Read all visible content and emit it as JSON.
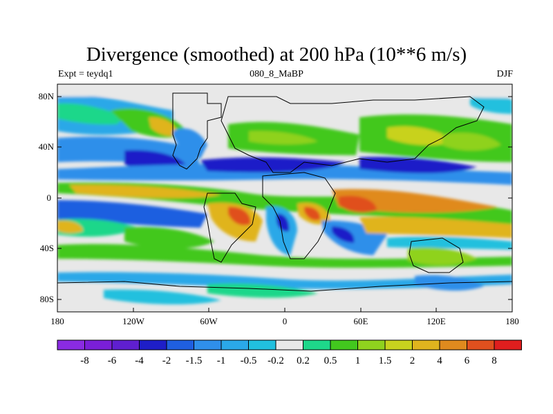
{
  "title": "Divergence (smoothed) at 200 hPa (10**6 m/s)",
  "left_subtitle": "Expt = teydq1",
  "center_subtitle": "080_8_MaBP",
  "right_subtitle": "DJF",
  "y_ticks": [
    "80N",
    "40N",
    "0",
    "40S",
    "80S"
  ],
  "x_ticks": [
    "180",
    "120W",
    "60W",
    "0",
    "60E",
    "120E",
    "180"
  ],
  "colorbar": {
    "labels": [
      "-8",
      "-6",
      "-4",
      "-2",
      "-1.5",
      "-1",
      "-0.5",
      "-0.2",
      "0.2",
      "0.5",
      "1",
      "1.5",
      "2",
      "4",
      "6",
      "8"
    ],
    "colors": [
      "#8a2be2",
      "#7a1fd8",
      "#5f1fd0",
      "#1e1ec8",
      "#1f5fe0",
      "#2f8fea",
      "#2aa8e8",
      "#21c0de",
      "#e8e8e8",
      "#1ed78a",
      "#42c81e",
      "#8fd21e",
      "#c8d21e",
      "#e0b41e",
      "#e08a1e",
      "#e0501e",
      "#e01e1e"
    ]
  },
  "colors": {
    "land_outline": "#000000",
    "background_field": "#e8e8e8"
  }
}
